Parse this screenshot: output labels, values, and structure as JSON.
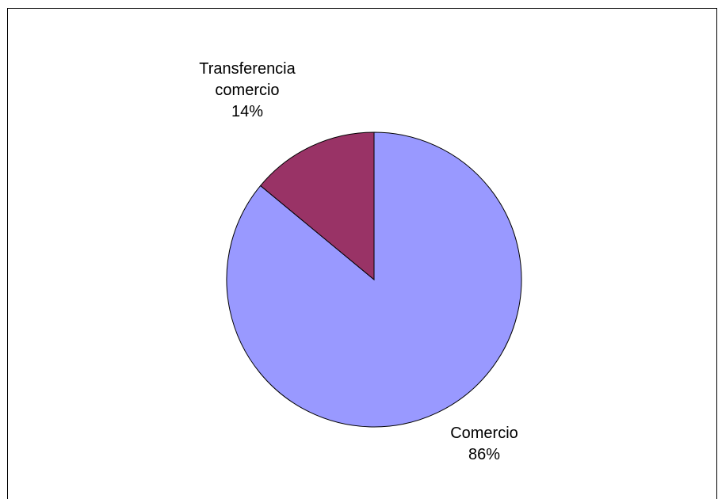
{
  "chart_data": {
    "type": "pie",
    "title": "",
    "slices": [
      {
        "name": "Comercio",
        "value": 86,
        "label": "Comercio",
        "percent_label": "86%",
        "color": "#9999ff"
      },
      {
        "name": "Transferencia comercio",
        "value": 14,
        "label": "Transferencia\ncomercio",
        "percent_label": "14%",
        "color": "#993366"
      }
    ],
    "legend": "none",
    "start_angle_deg": 0,
    "direction": "clockwise"
  }
}
